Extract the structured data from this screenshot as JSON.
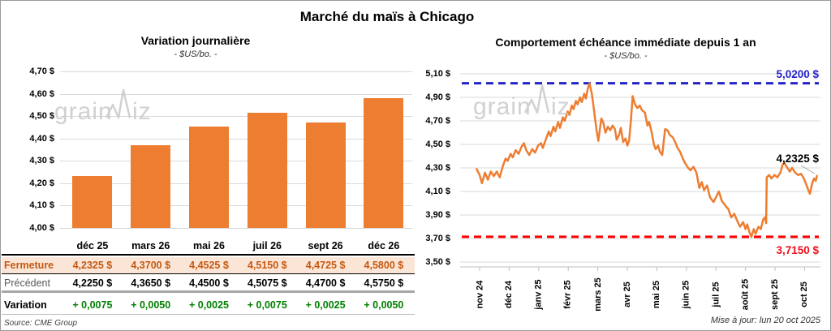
{
  "page": {
    "title": "Marché du maïs à Chicago",
    "watermark": "grainwiz",
    "source": "Source: CME Group",
    "update_note": "Mise à jour: lun 20 oct 2025"
  },
  "colors": {
    "orange": "#ED7D31",
    "blue_resistance": "#2323C8",
    "red_support": "#FF0000",
    "green_positive": "#008000",
    "brown_close": "#C45911",
    "peach_row_bg": "#FBE5D6",
    "gridline": "#D9D9D9"
  },
  "chart_data": [
    {
      "type": "bar",
      "title": "Variation journalière",
      "subtitle": "- $US/bo. -",
      "ylim": [
        4.0,
        4.7
      ],
      "ytick_step": 0.1,
      "ytick_format": "0,00 $",
      "grid": true,
      "categories": [
        "déc 25",
        "mars 26",
        "mai 26",
        "juil 26",
        "sept 26",
        "déc 26"
      ],
      "values": [
        4.2325,
        4.37,
        4.4525,
        4.515,
        4.4725,
        4.58
      ],
      "bar_color": "#ED7D31",
      "table": {
        "rows": [
          {
            "label": "Fermeture",
            "style": "fermeture-row",
            "values": [
              "4,2325 $",
              "4,3700 $",
              "4,4525 $",
              "4,5150 $",
              "4,4725 $",
              "4,5800 $"
            ]
          },
          {
            "label": "Précédent",
            "style": "precedent-row",
            "values": [
              "4,2250 $",
              "4,3650 $",
              "4,4500 $",
              "4,5075 $",
              "4,4700 $",
              "4,5750 $"
            ]
          },
          {
            "label": "Variation",
            "style": "variation-row",
            "values": [
              "+ 0,0075",
              "+ 0,0050",
              "+ 0,0025",
              "+ 0,0075",
              "+ 0,0025",
              "+ 0,0050"
            ]
          }
        ]
      }
    },
    {
      "type": "line",
      "title": "Comportement échéance immédiate depuis 1 an",
      "subtitle": "- $US/bo. -",
      "ylim": [
        3.5,
        5.1
      ],
      "ytick_step": 0.2,
      "ytick_format": "0,00 $",
      "grid": true,
      "line_color": "#ED7D31",
      "x_labels": [
        "nov 24",
        "déc 24",
        "janv 25",
        "févr 25",
        "mars 25",
        "avr 25",
        "mai 25",
        "juin 25",
        "juil 25",
        "août 25",
        "sept 25",
        "oct 25"
      ],
      "high_line": {
        "value": 5.02,
        "label": "5,0200 $",
        "color": "#2323C8"
      },
      "low_line": {
        "value": 3.715,
        "label": "3,7150 $",
        "color": "#FF0000"
      },
      "last_value": 4.2325,
      "last_label": "4,2325 $",
      "points": [
        [
          -0.1,
          4.29
        ],
        [
          0.0,
          4.24
        ],
        [
          0.08,
          4.17
        ],
        [
          0.18,
          4.26
        ],
        [
          0.28,
          4.2
        ],
        [
          0.38,
          4.27
        ],
        [
          0.48,
          4.23
        ],
        [
          0.58,
          4.27
        ],
        [
          0.68,
          4.22
        ],
        [
          0.78,
          4.31
        ],
        [
          0.88,
          4.38
        ],
        [
          0.95,
          4.36
        ],
        [
          1.05,
          4.42
        ],
        [
          1.12,
          4.39
        ],
        [
          1.22,
          4.45
        ],
        [
          1.32,
          4.42
        ],
        [
          1.42,
          4.48
        ],
        [
          1.5,
          4.51
        ],
        [
          1.58,
          4.45
        ],
        [
          1.68,
          4.41
        ],
        [
          1.78,
          4.46
        ],
        [
          1.88,
          4.43
        ],
        [
          1.98,
          4.49
        ],
        [
          2.08,
          4.51
        ],
        [
          2.14,
          4.47
        ],
        [
          2.24,
          4.54
        ],
        [
          2.34,
          4.61
        ],
        [
          2.4,
          4.57
        ],
        [
          2.5,
          4.65
        ],
        [
          2.56,
          4.61
        ],
        [
          2.66,
          4.69
        ],
        [
          2.72,
          4.64
        ],
        [
          2.82,
          4.73
        ],
        [
          2.88,
          4.7
        ],
        [
          2.98,
          4.78
        ],
        [
          3.04,
          4.75
        ],
        [
          3.12,
          4.83
        ],
        [
          3.18,
          4.8
        ],
        [
          3.26,
          4.87
        ],
        [
          3.32,
          4.84
        ],
        [
          3.4,
          4.9
        ],
        [
          3.46,
          4.86
        ],
        [
          3.54,
          4.93
        ],
        [
          3.6,
          4.89
        ],
        [
          3.66,
          4.97
        ],
        [
          3.72,
          5.02
        ],
        [
          3.8,
          4.93
        ],
        [
          3.88,
          4.78
        ],
        [
          3.96,
          4.62
        ],
        [
          4.02,
          4.53
        ],
        [
          4.12,
          4.72
        ],
        [
          4.18,
          4.69
        ],
        [
          4.26,
          4.6
        ],
        [
          4.34,
          4.65
        ],
        [
          4.42,
          4.62
        ],
        [
          4.5,
          4.66
        ],
        [
          4.58,
          4.63
        ],
        [
          4.64,
          4.54
        ],
        [
          4.72,
          4.58
        ],
        [
          4.78,
          4.64
        ],
        [
          4.86,
          4.52
        ],
        [
          4.94,
          4.55
        ],
        [
          5.0,
          4.49
        ],
        [
          5.06,
          4.53
        ],
        [
          5.12,
          4.7
        ],
        [
          5.18,
          4.91
        ],
        [
          5.26,
          4.84
        ],
        [
          5.34,
          4.81
        ],
        [
          5.42,
          4.83
        ],
        [
          5.5,
          4.79
        ],
        [
          5.6,
          4.77
        ],
        [
          5.68,
          4.66
        ],
        [
          5.74,
          4.69
        ],
        [
          5.82,
          4.61
        ],
        [
          5.9,
          4.5
        ],
        [
          5.96,
          4.46
        ],
        [
          6.04,
          4.49
        ],
        [
          6.1,
          4.44
        ],
        [
          6.18,
          4.41
        ],
        [
          6.28,
          4.63
        ],
        [
          6.36,
          4.62
        ],
        [
          6.44,
          4.58
        ],
        [
          6.54,
          4.56
        ],
        [
          6.62,
          4.52
        ],
        [
          6.7,
          4.47
        ],
        [
          6.78,
          4.44
        ],
        [
          6.88,
          4.38
        ],
        [
          6.96,
          4.34
        ],
        [
          7.06,
          4.3
        ],
        [
          7.14,
          4.28
        ],
        [
          7.24,
          4.31
        ],
        [
          7.34,
          4.26
        ],
        [
          7.44,
          4.13
        ],
        [
          7.52,
          4.18
        ],
        [
          7.6,
          4.11
        ],
        [
          7.7,
          4.15
        ],
        [
          7.8,
          4.05
        ],
        [
          7.92,
          4.01
        ],
        [
          8.02,
          4.06
        ],
        [
          8.1,
          4.1
        ],
        [
          8.2,
          4.02
        ],
        [
          8.32,
          3.98
        ],
        [
          8.42,
          3.95
        ],
        [
          8.52,
          3.88
        ],
        [
          8.62,
          3.91
        ],
        [
          8.72,
          3.85
        ],
        [
          8.82,
          3.8
        ],
        [
          8.92,
          3.84
        ],
        [
          9.0,
          3.78
        ],
        [
          9.06,
          3.82
        ],
        [
          9.14,
          3.75
        ],
        [
          9.2,
          3.715
        ],
        [
          9.28,
          3.78
        ],
        [
          9.34,
          3.74
        ],
        [
          9.44,
          3.8
        ],
        [
          9.52,
          3.78
        ],
        [
          9.6,
          3.86
        ],
        [
          9.66,
          3.88
        ],
        [
          9.7,
          3.83
        ],
        [
          9.72,
          4.22
        ],
        [
          9.8,
          4.24
        ],
        [
          9.88,
          4.21
        ],
        [
          9.98,
          4.24
        ],
        [
          10.08,
          4.22
        ],
        [
          10.18,
          4.26
        ],
        [
          10.26,
          4.33
        ],
        [
          10.32,
          4.34
        ],
        [
          10.42,
          4.3
        ],
        [
          10.5,
          4.27
        ],
        [
          10.58,
          4.3
        ],
        [
          10.68,
          4.26
        ],
        [
          10.78,
          4.24
        ],
        [
          10.88,
          4.25
        ],
        [
          10.96,
          4.22
        ],
        [
          11.04,
          4.17
        ],
        [
          11.1,
          4.13
        ],
        [
          11.18,
          4.08
        ],
        [
          11.26,
          4.17
        ],
        [
          11.32,
          4.21
        ],
        [
          11.38,
          4.19
        ],
        [
          11.42,
          4.2325
        ]
      ]
    }
  ]
}
